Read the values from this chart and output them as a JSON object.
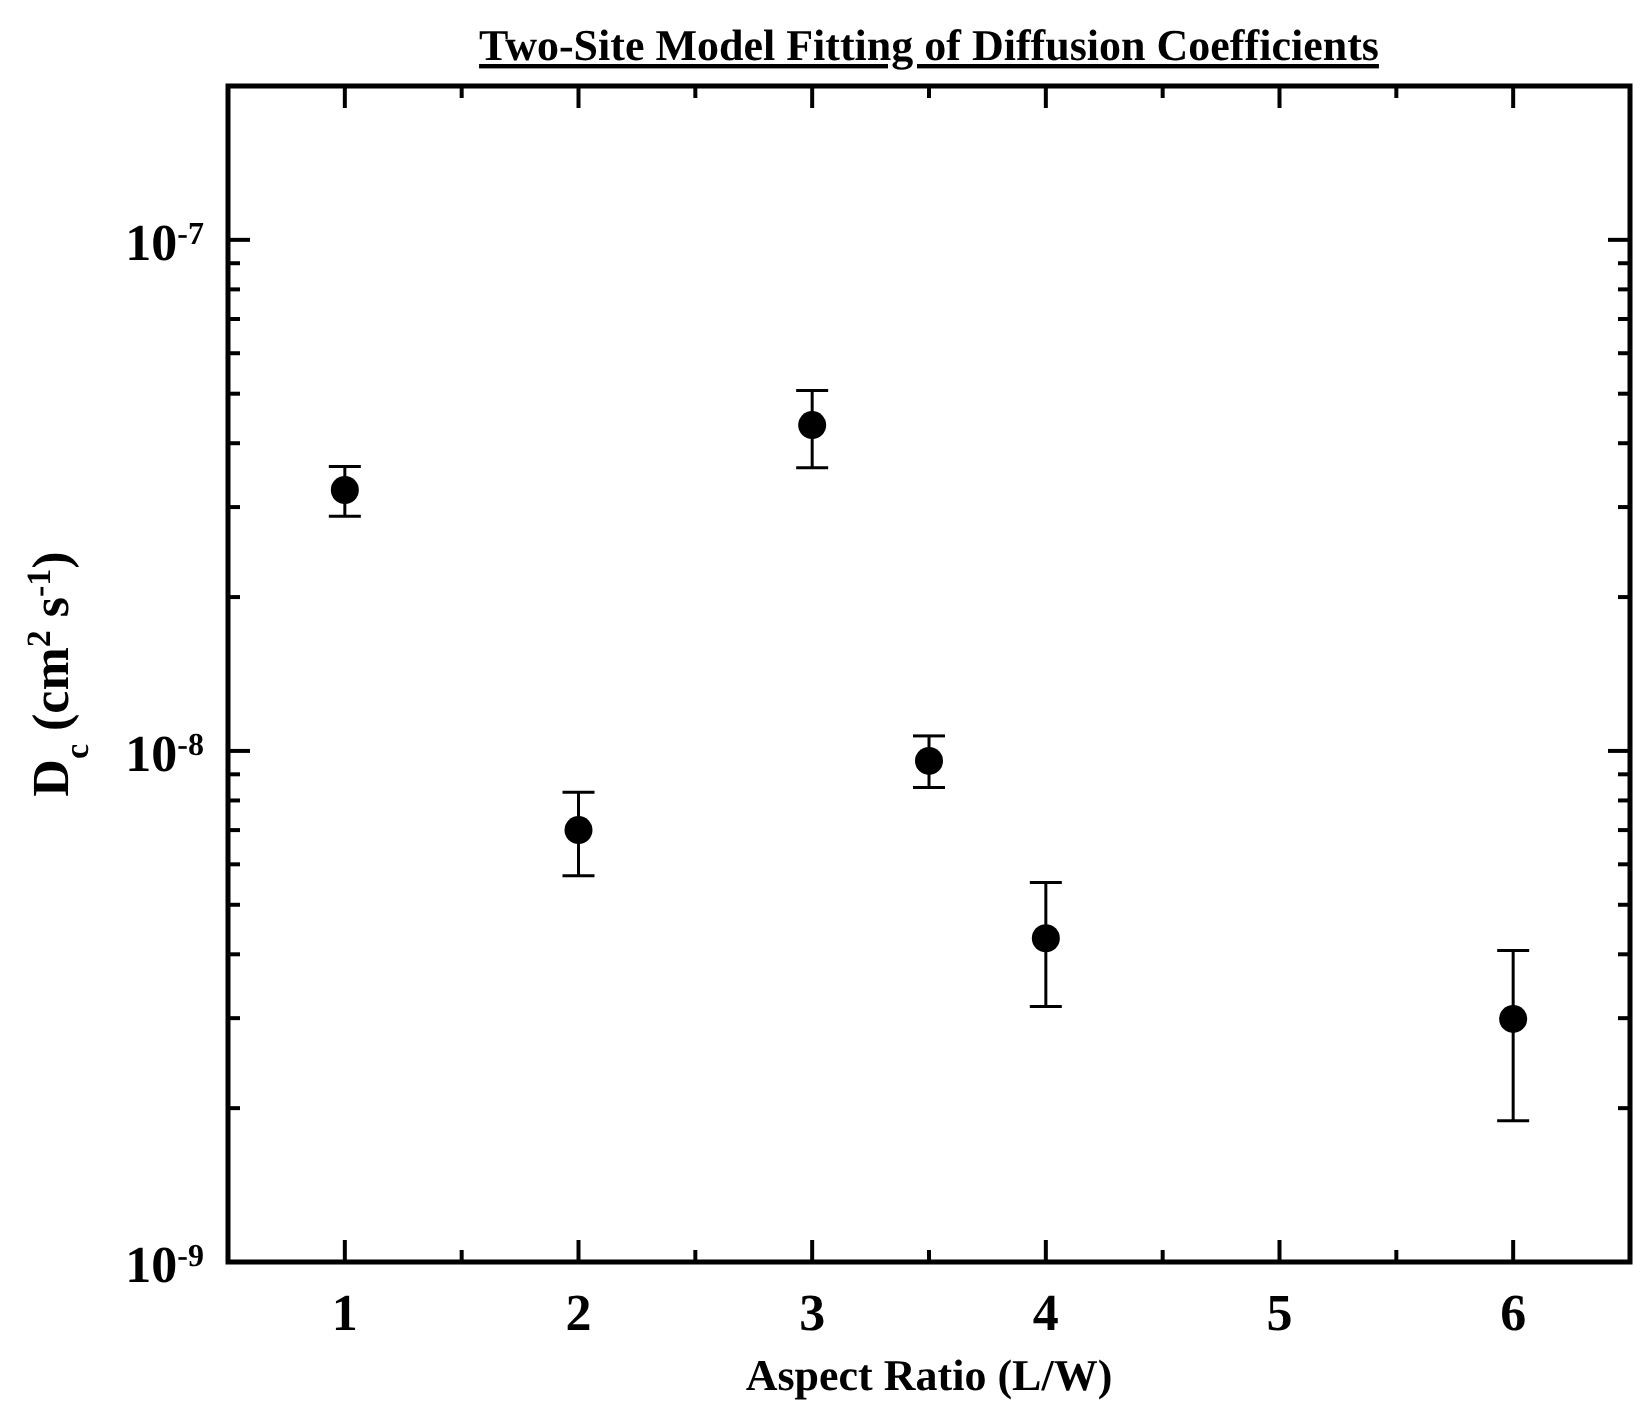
{
  "chart_data": {
    "type": "scatter",
    "title": "Two-Site Model Fitting of Diffusion Coefficients",
    "xlabel": "Aspect Ratio (L/W)",
    "ylabel": "D$_{c}$ (cm$^{2}$ s$^{-1}$)",
    "x": [
      1,
      2,
      3,
      3.5,
      4,
      6
    ],
    "series": [
      {
        "color": "#000000",
        "values": [
          3.24e-08,
          7e-09,
          4.34e-08,
          9.56e-09,
          4.3e-09,
          2.99e-09
        ],
        "errors": [
          [
            2.88e-08,
            3.6e-08
          ],
          [
            5.7e-09,
            8.3e-09
          ],
          [
            3.58e-08,
            5.07e-08
          ],
          [
            8.48e-09,
            1.07e-08
          ],
          [
            3.16e-09,
            5.53e-09
          ],
          [
            1.89e-09,
            4.07e-09
          ]
        ]
      }
    ],
    "xlim": [
      0.5,
      6.5
    ],
    "ylim": [
      1e-09,
      2e-07
    ],
    "log": "y",
    "marker": "circle",
    "grid": false,
    "xticks": [
      {
        "value": 1,
        "label": "1"
      },
      {
        "value": 1.5,
        "label": null
      },
      {
        "value": 2,
        "label": "2"
      },
      {
        "value": 2.5,
        "label": null
      },
      {
        "value": 3,
        "label": "3"
      },
      {
        "value": 3.5,
        "label": null
      },
      {
        "value": 4,
        "label": "4"
      },
      {
        "value": 4.5,
        "label": null
      },
      {
        "value": 5,
        "label": "5"
      },
      {
        "value": 5.5,
        "label": null
      },
      {
        "value": 6,
        "label": "6"
      }
    ],
    "yticks": [
      {
        "value": 1e-09,
        "label": "10$^{-9}$"
      },
      {
        "value": 2e-09,
        "label": null
      },
      {
        "value": 3e-09,
        "label": null
      },
      {
        "value": 4e-09,
        "label": null
      },
      {
        "value": 5e-09,
        "label": null
      },
      {
        "value": 6e-09,
        "label": null
      },
      {
        "value": 7e-09,
        "label": null
      },
      {
        "value": 8e-09,
        "label": null
      },
      {
        "value": 9e-09,
        "label": null
      },
      {
        "value": 1e-08,
        "label": "10$^{-8}$"
      },
      {
        "value": 2e-08,
        "label": null
      },
      {
        "value": 3e-08,
        "label": null
      },
      {
        "value": 4e-08,
        "label": null
      },
      {
        "value": 5e-08,
        "label": null
      },
      {
        "value": 6e-08,
        "label": null
      },
      {
        "value": 7e-08,
        "label": null
      },
      {
        "value": 8e-08,
        "label": null
      },
      {
        "value": 9e-08,
        "label": null
      },
      {
        "value": 1e-07,
        "label": "10$^{-7}$"
      },
      {
        "value": 2e-07,
        "label": null
      }
    ]
  }
}
